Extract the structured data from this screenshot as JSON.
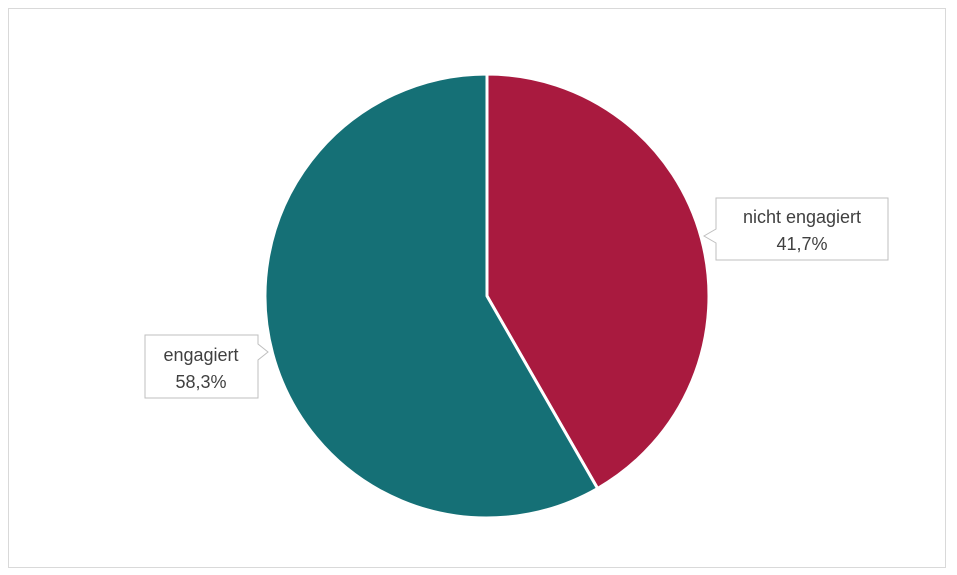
{
  "chart_data": {
    "type": "pie",
    "categories": [
      "nicht engagiert",
      "engagiert"
    ],
    "values": [
      41.7,
      58.3
    ],
    "value_labels": [
      "41,7%",
      "58,3%"
    ],
    "colors": [
      "#a91a3f",
      "#157076"
    ],
    "title": "",
    "legend": "none",
    "start_angle": "top, clockwise"
  }
}
